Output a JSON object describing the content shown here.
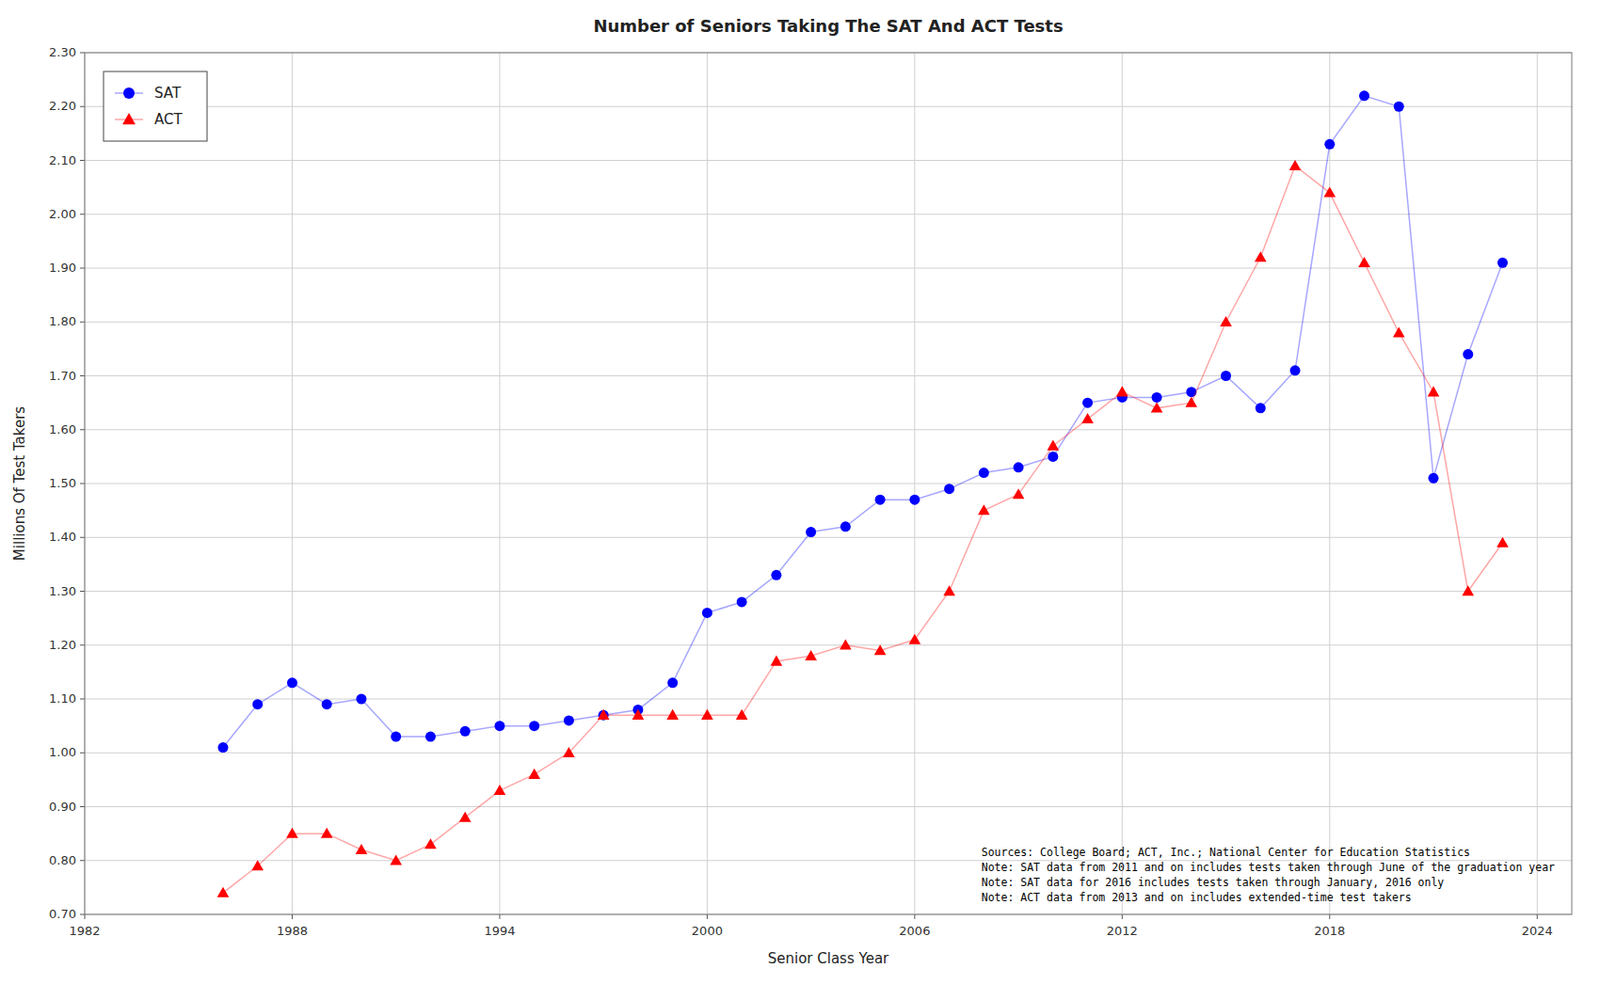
{
  "chart_data": {
    "type": "line",
    "title": "Number of Seniors Taking The SAT And ACT Tests",
    "x_label": "Senior Class Year",
    "y_label": "Millions Of Test Takers",
    "x": [
      1986,
      1987,
      1988,
      1989,
      1990,
      1991,
      1992,
      1993,
      1994,
      1995,
      1996,
      1997,
      1998,
      1999,
      2000,
      2001,
      2002,
      2003,
      2004,
      2005,
      2006,
      2007,
      2008,
      2009,
      2010,
      2011,
      2012,
      2013,
      2014,
      2015,
      2016,
      2017,
      2018,
      2019,
      2020,
      2021,
      2022,
      2023
    ],
    "series": [
      {
        "name": "SAT",
        "color": "blue",
        "marker": "circle",
        "line_style": "solid",
        "values": [
          1.01,
          1.09,
          1.13,
          1.09,
          1.1,
          1.03,
          1.03,
          1.04,
          1.05,
          1.05,
          1.06,
          1.07,
          1.08,
          1.13,
          1.26,
          1.28,
          1.33,
          1.41,
          1.42,
          1.47,
          1.47,
          1.49,
          1.52,
          1.53,
          1.55,
          1.65,
          1.66,
          1.66,
          1.67,
          1.7,
          1.64,
          1.71,
          2.13,
          2.22,
          2.2,
          1.51,
          1.74,
          1.91
        ]
      },
      {
        "name": "ACT",
        "color": "red",
        "marker": "triangle",
        "line_style": "solid",
        "values": [
          0.74,
          0.79,
          0.85,
          0.85,
          0.82,
          0.8,
          0.83,
          0.88,
          0.93,
          0.96,
          1.0,
          1.07,
          1.07,
          1.07,
          1.07,
          1.07,
          1.17,
          1.18,
          1.2,
          1.19,
          1.21,
          1.3,
          1.45,
          1.48,
          1.57,
          1.62,
          1.67,
          1.64,
          1.65,
          1.8,
          1.92,
          2.09,
          2.04,
          1.91,
          1.78,
          1.67,
          1.3,
          1.39
        ]
      }
    ],
    "xlim": [
      1982,
      2025
    ],
    "xticks": [
      1982,
      1988,
      1994,
      2000,
      2006,
      2012,
      2018,
      2024
    ],
    "ylim": [
      0.7,
      2.3
    ],
    "yticks": [
      {
        "value": 0.7,
        "label": "0.70"
      },
      {
        "value": 0.8,
        "label": "0.80"
      },
      {
        "value": 0.9,
        "label": "0.90"
      },
      {
        "value": 1.0,
        "label": "1.00"
      },
      {
        "value": 1.1,
        "label": "1.10"
      },
      {
        "value": 1.2,
        "label": "1.20"
      },
      {
        "value": 1.3,
        "label": "1.30"
      },
      {
        "value": 1.4,
        "label": "1.40"
      },
      {
        "value": 1.5,
        "label": "1.50"
      },
      {
        "value": 1.6,
        "label": "1.60"
      },
      {
        "value": 1.7,
        "label": "1.70"
      },
      {
        "value": 1.8,
        "label": "1.80"
      },
      {
        "value": 1.9,
        "label": "1.90"
      },
      {
        "value": 2.0,
        "label": "2.00"
      },
      {
        "value": 2.1,
        "label": "2.10"
      },
      {
        "value": 2.2,
        "label": "2.20"
      },
      {
        "value": 2.3,
        "label": "2.30"
      }
    ],
    "grid": true,
    "legend": "upper left",
    "annotations": [
      "Sources: College Board; ACT, Inc.; National Center for Education Statistics",
      "Note: SAT data from 2011 and on includes tests taken through June of the graduation year",
      "Note: SAT data for 2016 includes tests taken through January, 2016 only",
      "Note: ACT data from 2013 and on includes extended-time test takers"
    ]
  }
}
